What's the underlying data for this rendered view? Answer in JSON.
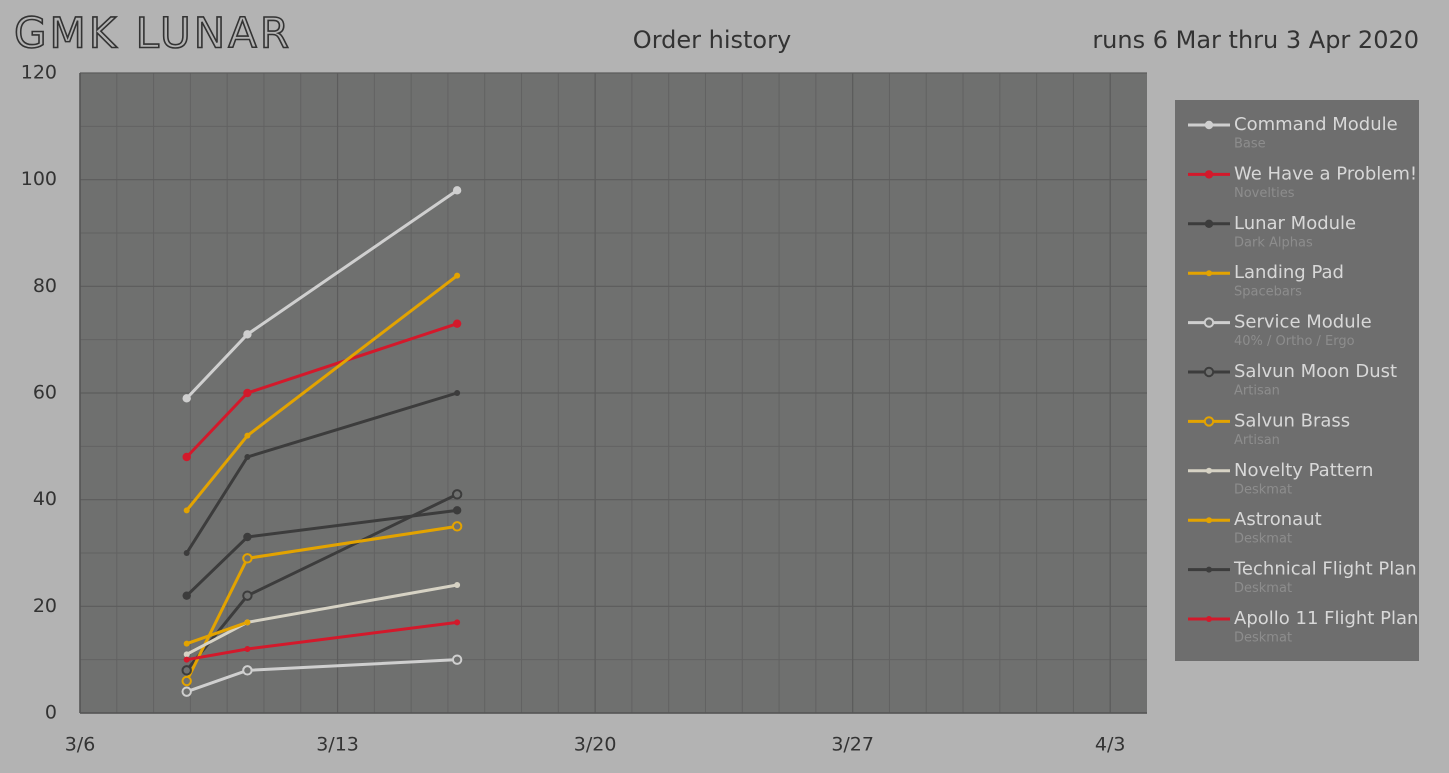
{
  "brand": "GMK LUNAR",
  "chart_data": {
    "type": "line",
    "title": "Order history",
    "subtitle": "runs 6 Mar thru 3 Apr 2020",
    "x": [
      8.9,
      10.55,
      16.25
    ],
    "xlim": [
      6,
      35
    ],
    "xticks": [
      {
        "value": 6,
        "label": "3/6"
      },
      {
        "value": 13,
        "label": "3/13"
      },
      {
        "value": 20,
        "label": "3/20"
      },
      {
        "value": 27,
        "label": "3/27"
      },
      {
        "value": 34,
        "label": "4/3"
      }
    ],
    "ylim": [
      0,
      120
    ],
    "yticks": [
      0,
      20,
      40,
      60,
      80,
      100,
      120
    ],
    "grid": true,
    "legend": "right",
    "series": [
      {
        "name": "Command Module",
        "group": "Base",
        "color": "#cfcfcf",
        "marker": "filled",
        "values": [
          59,
          71,
          98
        ]
      },
      {
        "name": "We Have a Problem!",
        "group": "Novelties",
        "color": "#d3192b",
        "marker": "filled",
        "values": [
          48,
          60,
          73
        ]
      },
      {
        "name": "Lunar Module",
        "group": "Dark Alphas",
        "color": "#3c3c3c",
        "marker": "filled",
        "values": [
          22,
          33,
          38
        ]
      },
      {
        "name": "Landing Pad",
        "group": "Spacebars",
        "color": "#e3a300",
        "marker": "small",
        "values": [
          38,
          52,
          82
        ]
      },
      {
        "name": "Service Module",
        "group": "40% / Ortho / Ergo",
        "color": "#cfcfcf",
        "marker": "hollow",
        "values": [
          4,
          8,
          10
        ]
      },
      {
        "name": "Salvun Moon Dust",
        "group": "Artisan",
        "color": "#3c3c3c",
        "marker": "hollow",
        "values": [
          8,
          22,
          41
        ]
      },
      {
        "name": "Salvun Brass",
        "group": "Artisan",
        "color": "#e3a300",
        "marker": "hollow",
        "values": [
          6,
          29,
          35
        ]
      },
      {
        "name": "Novelty Pattern",
        "group": "Deskmat",
        "color": "#d6d2c4",
        "marker": "small",
        "values": [
          11,
          17,
          24
        ]
      },
      {
        "name": "Astronaut",
        "group": "Deskmat",
        "color": "#e3a300",
        "marker": "small",
        "values": [
          13,
          17,
          null
        ]
      },
      {
        "name": "Technical Flight Plan",
        "group": "Deskmat",
        "color": "#3c3c3c",
        "marker": "small",
        "values": [
          30,
          48,
          60
        ]
      },
      {
        "name": "Apollo 11 Flight Plan",
        "group": "Deskmat",
        "color": "#d3192b",
        "marker": "small",
        "values": [
          10,
          12,
          17
        ]
      }
    ]
  }
}
